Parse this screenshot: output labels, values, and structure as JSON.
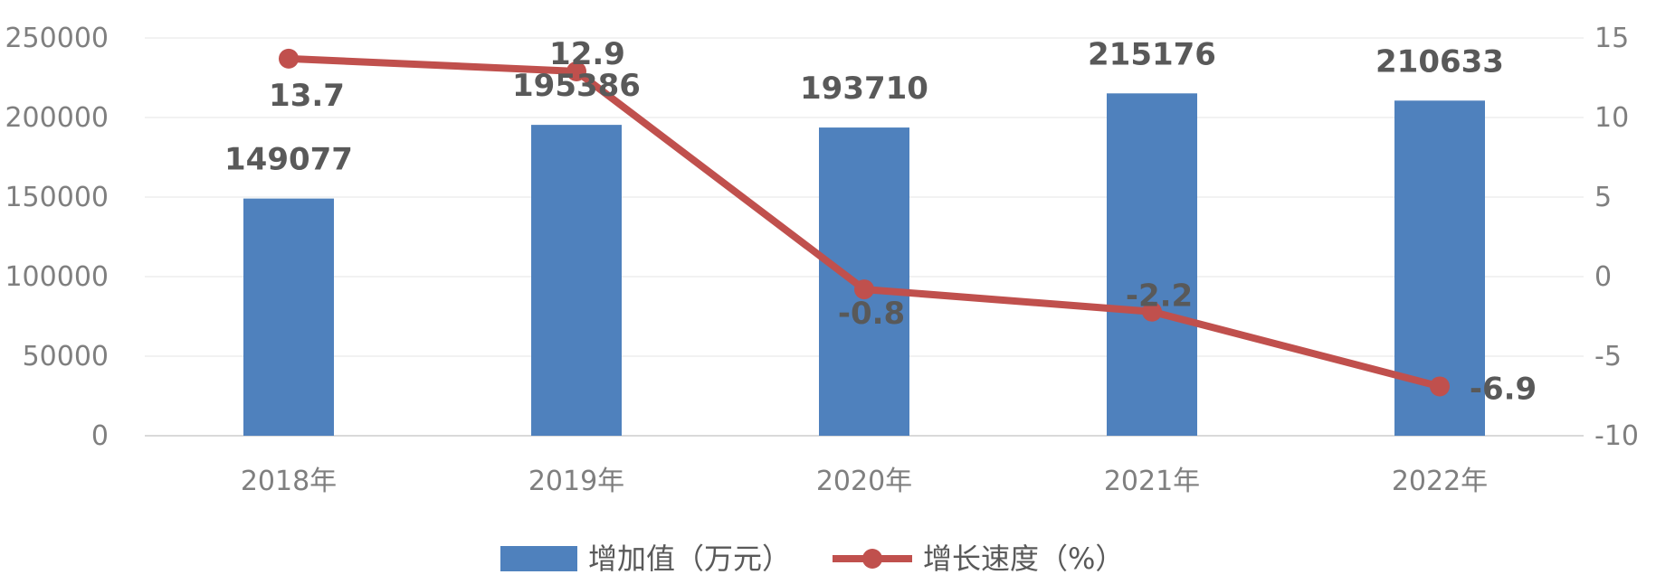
{
  "chart_data": {
    "type": "bar",
    "categories": [
      "2018年",
      "2019年",
      "2020年",
      "2021年",
      "2022年"
    ],
    "series": [
      {
        "name": "增加值（万元）",
        "type": "bar",
        "axis": "left",
        "color": "#4f81bd",
        "values": [
          149077,
          195386,
          193710,
          215176,
          210633
        ]
      },
      {
        "name": "增长速度（%）",
        "type": "line",
        "axis": "right",
        "color": "#c0504d",
        "values": [
          13.7,
          12.9,
          -0.8,
          -2.2,
          -6.9
        ]
      }
    ],
    "left_axis": {
      "min": 0,
      "max": 250000,
      "step": 50000,
      "tick_labels": [
        "0",
        "50000",
        "100000",
        "150000",
        "200000",
        "250000"
      ]
    },
    "right_axis": {
      "min": -10,
      "max": 15,
      "step": 5,
      "tick_labels": [
        "-10",
        "-5",
        "0",
        "5",
        "10",
        "15"
      ]
    },
    "grid": true,
    "legend_position": "bottom"
  }
}
